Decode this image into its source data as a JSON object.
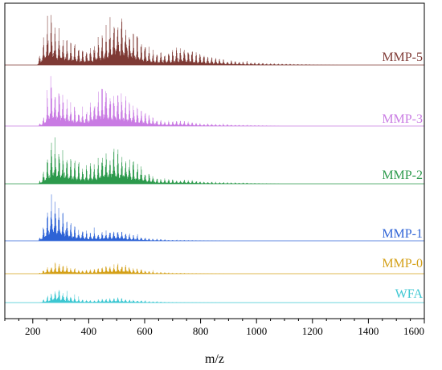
{
  "chart_data": {
    "type": "line",
    "title": "",
    "xlabel": "m/z",
    "ylabel": "",
    "xlim": [
      100,
      1600
    ],
    "x_ticks": [
      200,
      400,
      600,
      800,
      1000,
      1200,
      1400,
      1600
    ],
    "x_tick_labels": [
      "200",
      "400",
      "600",
      "800",
      "1000",
      "1200",
      "1400",
      "1600"
    ],
    "grid": false,
    "legend": "none",
    "layout": "stacked offset spectra, one series per row, label at right end of each baseline",
    "series": [
      {
        "name": "MMP-5",
        "color": "#7f3a35",
        "envelope": [
          [
            215,
            0
          ],
          [
            230,
            0.3
          ],
          [
            265,
            1.0
          ],
          [
            290,
            0.6
          ],
          [
            330,
            0.45
          ],
          [
            380,
            0.3
          ],
          [
            420,
            0.35
          ],
          [
            460,
            0.7
          ],
          [
            500,
            1.0
          ],
          [
            540,
            0.75
          ],
          [
            600,
            0.35
          ],
          [
            650,
            0.2
          ],
          [
            700,
            0.3
          ],
          [
            730,
            0.35
          ],
          [
            800,
            0.2
          ],
          [
            900,
            0.08
          ],
          [
            1000,
            0.04
          ],
          [
            1100,
            0.02
          ],
          [
            1200,
            0.01
          ],
          [
            1300,
            0
          ]
        ]
      },
      {
        "name": "MMP-3",
        "color": "#c97be3",
        "envelope": [
          [
            220,
            0
          ],
          [
            240,
            0.2
          ],
          [
            265,
            1.0
          ],
          [
            290,
            0.85
          ],
          [
            320,
            0.55
          ],
          [
            360,
            0.35
          ],
          [
            400,
            0.4
          ],
          [
            450,
            0.9
          ],
          [
            480,
            0.75
          ],
          [
            520,
            0.65
          ],
          [
            560,
            0.45
          ],
          [
            600,
            0.28
          ],
          [
            650,
            0.12
          ],
          [
            700,
            0.1
          ],
          [
            740,
            0.1
          ],
          [
            800,
            0.05
          ],
          [
            900,
            0.03
          ],
          [
            1000,
            0.015
          ],
          [
            1100,
            0
          ]
        ]
      },
      {
        "name": "MMP-2",
        "color": "#2c9a4c",
        "envelope": [
          [
            220,
            0
          ],
          [
            240,
            0.3
          ],
          [
            270,
            1.0
          ],
          [
            300,
            0.85
          ],
          [
            330,
            0.6
          ],
          [
            380,
            0.4
          ],
          [
            420,
            0.45
          ],
          [
            460,
            0.75
          ],
          [
            500,
            0.8
          ],
          [
            540,
            0.6
          ],
          [
            600,
            0.3
          ],
          [
            650,
            0.12
          ],
          [
            700,
            0.1
          ],
          [
            740,
            0.1
          ],
          [
            800,
            0.05
          ],
          [
            900,
            0.03
          ],
          [
            1000,
            0.015
          ],
          [
            1100,
            0
          ]
        ]
      },
      {
        "name": "MMP-1",
        "color": "#2e63d6",
        "envelope": [
          [
            220,
            0
          ],
          [
            240,
            0.35
          ],
          [
            265,
            1.0
          ],
          [
            290,
            0.85
          ],
          [
            320,
            0.5
          ],
          [
            360,
            0.25
          ],
          [
            400,
            0.2
          ],
          [
            450,
            0.2
          ],
          [
            500,
            0.25
          ],
          [
            560,
            0.12
          ],
          [
            620,
            0.05
          ],
          [
            700,
            0.02
          ],
          [
            800,
            0.01
          ],
          [
            900,
            0
          ]
        ]
      },
      {
        "name": "MMP-0",
        "color": "#d4a017",
        "envelope": [
          [
            220,
            0
          ],
          [
            250,
            0.35
          ],
          [
            290,
            0.6
          ],
          [
            330,
            0.35
          ],
          [
            380,
            0.2
          ],
          [
            420,
            0.25
          ],
          [
            480,
            0.45
          ],
          [
            520,
            0.55
          ],
          [
            560,
            0.3
          ],
          [
            620,
            0.12
          ],
          [
            700,
            0.05
          ],
          [
            800,
            0.02
          ],
          [
            900,
            0
          ]
        ]
      },
      {
        "name": "WFA",
        "color": "#3cc7d2",
        "envelope": [
          [
            225,
            0
          ],
          [
            260,
            0.5
          ],
          [
            285,
            1.0
          ],
          [
            310,
            0.65
          ],
          [
            340,
            0.35
          ],
          [
            380,
            0.18
          ],
          [
            420,
            0.15
          ],
          [
            460,
            0.25
          ],
          [
            500,
            0.3
          ],
          [
            540,
            0.2
          ],
          [
            600,
            0.1
          ],
          [
            700,
            0.03
          ],
          [
            800,
            0.01
          ],
          [
            900,
            0
          ]
        ]
      }
    ]
  }
}
